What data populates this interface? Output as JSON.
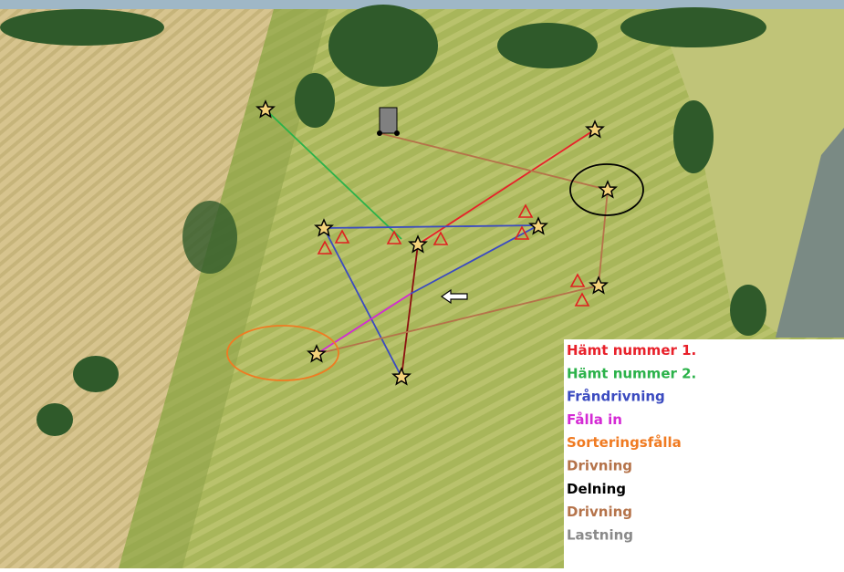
{
  "legend": {
    "items": [
      {
        "label": "Hämt nummer 1.",
        "color": "#e8202a"
      },
      {
        "label": "Hämt nummer 2.",
        "color": "#2bb24a"
      },
      {
        "label": "Fråndrivning",
        "color": "#3b4bc0"
      },
      {
        "label": "Fålla in",
        "color": "#d42ad4"
      },
      {
        "label": "Sorteringsfålla",
        "color": "#f07b22"
      },
      {
        "label": "Drivning",
        "color": "#b5734a"
      },
      {
        "label": "Delning",
        "color": "#000000"
      },
      {
        "label": "Drivning",
        "color": "#b5734a"
      },
      {
        "label": "Lastning",
        "color": "#8a8a8a"
      }
    ]
  }
}
